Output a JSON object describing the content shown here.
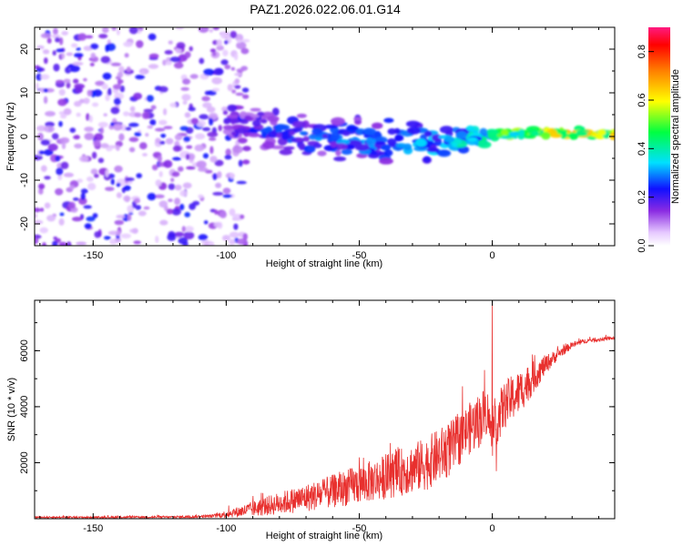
{
  "title": "PAZ1.2026.022.06.01.G14",
  "chart_data": [
    {
      "type": "heatmap",
      "xlabel": "Height of straight line (km)",
      "ylabel": "Frequency (Hz)",
      "xlim": [
        -172,
        46
      ],
      "ylim": [
        -25,
        25
      ],
      "xticks": [
        -150,
        -100,
        -50,
        0
      ],
      "yticks": [
        -20,
        -10,
        0,
        10,
        20
      ],
      "colorbar": {
        "label": "Normalized spectral amplitude",
        "range": [
          0,
          0.9
        ],
        "ticks": [
          0.0,
          0.2,
          0.4,
          0.6,
          0.8
        ]
      },
      "features": [
        {
          "name": "diffuse-scatter",
          "x_range": [
            -172,
            -100
          ],
          "y_range": [
            -25,
            25
          ],
          "amplitude": [
            0.05,
            0.25
          ]
        },
        {
          "name": "signal-ridge",
          "x": [
            -100,
            -80,
            -60,
            -40,
            -20,
            0,
            20,
            46
          ],
          "y": [
            3.5,
            0.5,
            0,
            -1.5,
            -1.5,
            0.5,
            1.0,
            0.8
          ],
          "amplitude": [
            0.25,
            0.3,
            0.33,
            0.36,
            0.38,
            0.5,
            0.7,
            0.7
          ]
        }
      ]
    },
    {
      "type": "line",
      "xlabel": "Height of straight line (km)",
      "ylabel": "SNR (10 * v/v)",
      "xlim": [
        -172,
        46
      ],
      "ylim": [
        0,
        7800
      ],
      "xticks": [
        -150,
        -100,
        -50,
        0
      ],
      "yticks": [
        2000,
        4000,
        6000
      ],
      "series": [
        {
          "name": "SNR",
          "color": "#e8302e",
          "x": [
            -172,
            -150,
            -120,
            -105,
            -95,
            -85,
            -75,
            -65,
            -55,
            -45,
            -35,
            -25,
            -15,
            -10,
            -5,
            -2,
            0,
            2,
            5,
            10,
            15,
            20,
            25,
            30,
            35,
            40,
            46
          ],
          "mean": [
            50,
            50,
            60,
            90,
            250,
            450,
            650,
            850,
            1100,
            1350,
            1650,
            1950,
            2550,
            3100,
            3500,
            3900,
            2800,
            3600,
            4100,
            4500,
            5000,
            5500,
            5900,
            6200,
            6350,
            6400,
            6450
          ],
          "noise": [
            30,
            30,
            40,
            60,
            200,
            350,
            450,
            550,
            650,
            750,
            850,
            950,
            1000,
            900,
            1000,
            900,
            600,
            900,
            850,
            800,
            600,
            350,
            180,
            120,
            80,
            70,
            60
          ],
          "spikes": [
            {
              "x": 0,
              "y": 7700
            },
            {
              "x": 1.5,
              "y": 1700
            }
          ]
        }
      ]
    }
  ],
  "colors": {
    "line": "#e8302e",
    "axis": "#000000",
    "background": "#ffffff"
  }
}
